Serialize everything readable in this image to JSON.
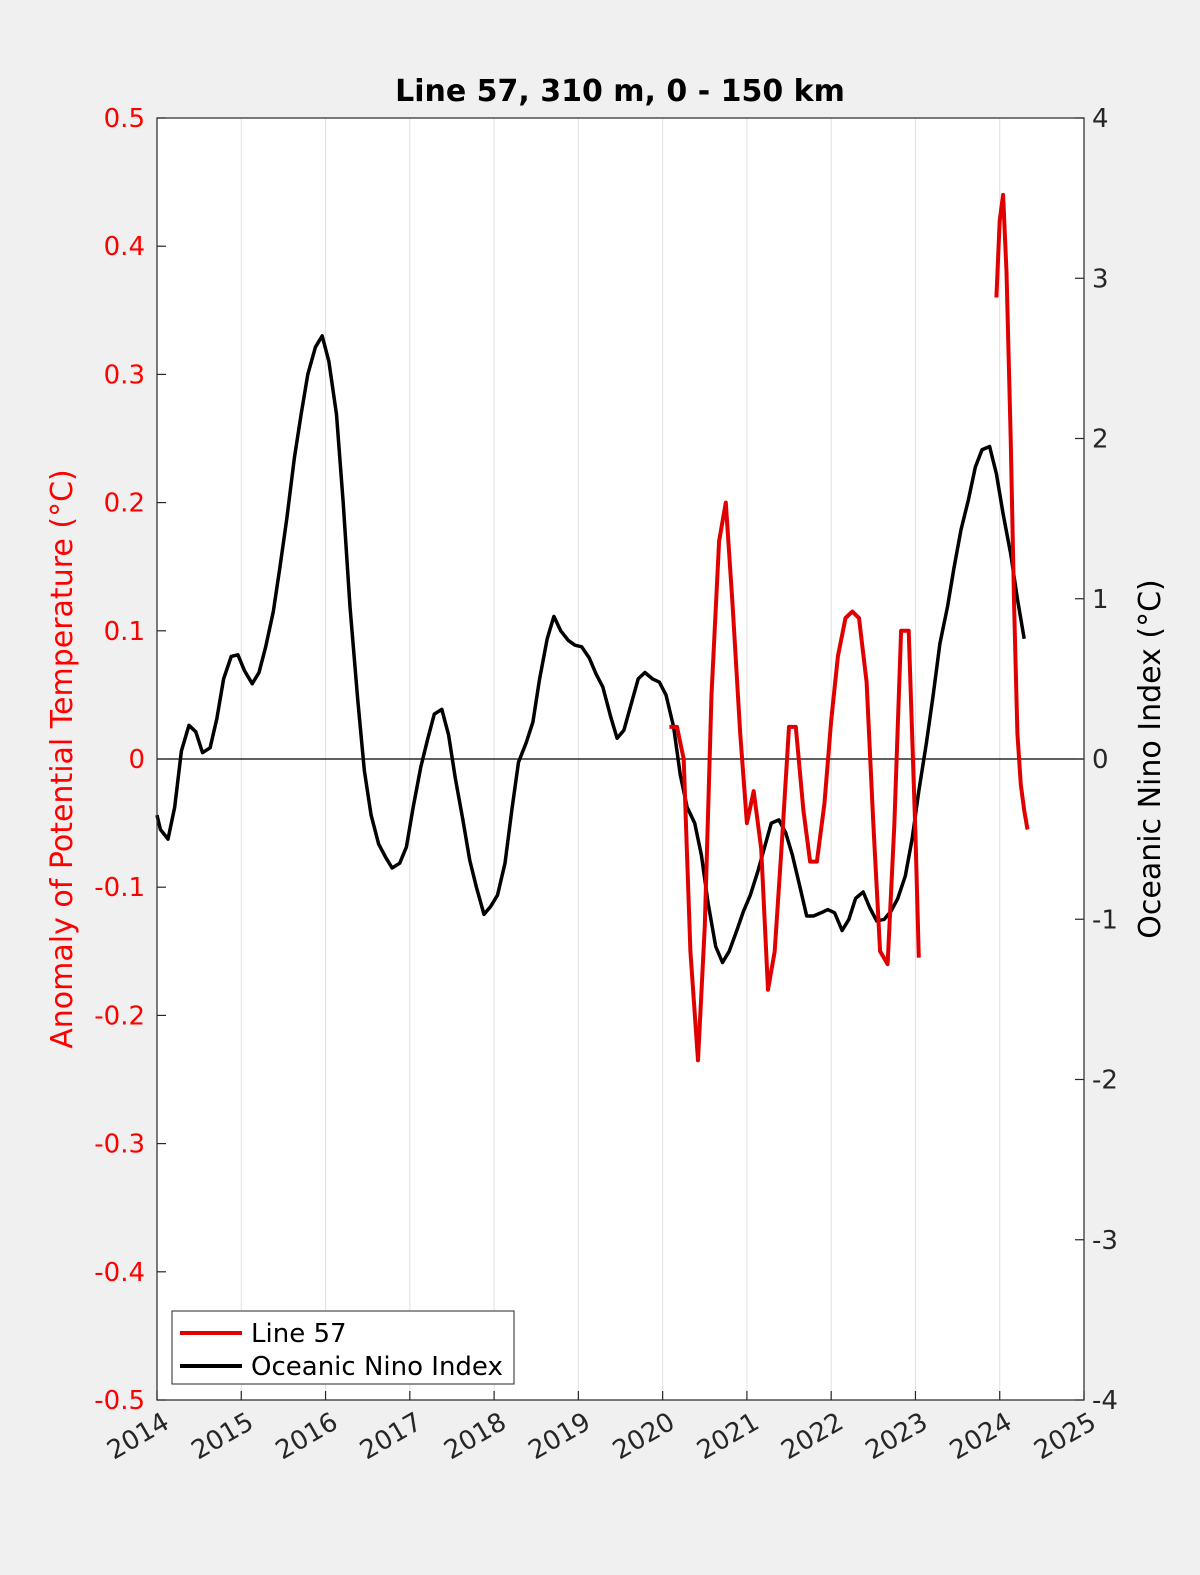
{
  "chart_data": {
    "type": "line",
    "title": "Line 57, 310 m, 0 - 150 km",
    "ylabel_left": "Anomaly of Potential Temperature (°C)",
    "ylabel_right": "Oceanic Nino Index (°C)",
    "xlabel": "",
    "xlim": [
      2014,
      2025
    ],
    "ylim_left": [
      -0.5,
      0.5
    ],
    "ylim_right": [
      -4,
      4
    ],
    "x_ticks": [
      "2014",
      "2015",
      "2016",
      "2017",
      "2018",
      "2019",
      "2020",
      "2021",
      "2022",
      "2023",
      "2024",
      "2025"
    ],
    "y_left_ticks": [
      "-0.5",
      "-0.4",
      "-0.3",
      "-0.2",
      "-0.1",
      "0",
      "0.1",
      "0.2",
      "0.3",
      "0.4",
      "0.5"
    ],
    "y_right_ticks": [
      "-4",
      "-3",
      "-2",
      "-1",
      "0",
      "1",
      "2",
      "3",
      "4"
    ],
    "grid": "vertical",
    "zero_line": true,
    "legend_position": "bottom-left",
    "colors": {
      "left_axis": "#ff0000",
      "line57": "#e00000",
      "oni": "#000000"
    },
    "series": [
      {
        "name": "Line 57",
        "axis": "left",
        "segments": [
          {
            "x": [
              2020.08,
              2020.17,
              2020.25,
              2020.33,
              2020.42,
              2020.5,
              2020.58,
              2020.67,
              2020.75,
              2020.83,
              2020.92,
              2021.0,
              2021.08,
              2021.17,
              2021.25,
              2021.33,
              2021.42,
              2021.5,
              2021.58,
              2021.67,
              2021.75,
              2021.83,
              2021.92,
              2022.0,
              2022.08,
              2022.17,
              2022.25,
              2022.33,
              2022.42,
              2022.5,
              2022.58,
              2022.67,
              2022.75,
              2022.83,
              2022.92,
              2023.0,
              2023.04
            ],
            "y": [
              0.025,
              0.025,
              0.0,
              -0.15,
              -0.235,
              -0.13,
              0.05,
              0.17,
              0.2,
              0.12,
              0.02,
              -0.05,
              -0.025,
              -0.07,
              -0.18,
              -0.15,
              -0.06,
              0.025,
              0.025,
              -0.04,
              -0.08,
              -0.08,
              -0.035,
              0.03,
              0.08,
              0.11,
              0.115,
              0.11,
              0.06,
              -0.05,
              -0.15,
              -0.16,
              -0.05,
              0.1,
              0.1,
              -0.06,
              -0.155
            ]
          },
          {
            "x": [
              2023.96,
              2024.0,
              2024.04,
              2024.08,
              2024.13,
              2024.17,
              2024.21,
              2024.25,
              2024.29,
              2024.33
            ],
            "y": [
              0.36,
              0.42,
              0.44,
              0.38,
              0.25,
              0.12,
              0.02,
              -0.02,
              -0.04,
              -0.055
            ]
          }
        ]
      },
      {
        "name": "Oceanic Nino Index",
        "axis": "right",
        "x": [
          2014.0,
          2014.04,
          2014.13,
          2014.21,
          2014.29,
          2014.38,
          2014.46,
          2014.54,
          2014.63,
          2014.71,
          2014.79,
          2014.88,
          2014.96,
          2015.04,
          2015.13,
          2015.21,
          2015.29,
          2015.38,
          2015.46,
          2015.54,
          2015.63,
          2015.71,
          2015.79,
          2015.88,
          2015.96,
          2016.04,
          2016.13,
          2016.21,
          2016.29,
          2016.38,
          2016.46,
          2016.54,
          2016.63,
          2016.71,
          2016.79,
          2016.88,
          2016.96,
          2017.04,
          2017.13,
          2017.21,
          2017.29,
          2017.38,
          2017.46,
          2017.54,
          2017.63,
          2017.71,
          2017.79,
          2017.88,
          2017.96,
          2018.04,
          2018.13,
          2018.21,
          2018.29,
          2018.38,
          2018.46,
          2018.54,
          2018.63,
          2018.71,
          2018.79,
          2018.88,
          2018.96,
          2019.04,
          2019.13,
          2019.21,
          2019.29,
          2019.38,
          2019.46,
          2019.54,
          2019.63,
          2019.71,
          2019.79,
          2019.88,
          2019.96,
          2020.04,
          2020.13,
          2020.21,
          2020.29,
          2020.38,
          2020.46,
          2020.54,
          2020.63,
          2020.71,
          2020.79,
          2020.88,
          2020.96,
          2021.04,
          2021.13,
          2021.21,
          2021.29,
          2021.38,
          2021.46,
          2021.54,
          2021.63,
          2021.71,
          2021.79,
          2021.88,
          2021.96,
          2022.04,
          2022.13,
          2022.21,
          2022.29,
          2022.38,
          2022.46,
          2022.54,
          2022.63,
          2022.71,
          2022.79,
          2022.88,
          2022.96,
          2023.04,
          2023.13,
          2023.21,
          2023.29,
          2023.38,
          2023.46,
          2023.54,
          2023.63,
          2023.71,
          2023.79,
          2023.88,
          2023.96,
          2024.04,
          2024.13,
          2024.21,
          2024.29
        ],
        "y": [
          -0.35,
          -0.44,
          -0.5,
          -0.3,
          0.05,
          0.21,
          0.17,
          0.04,
          0.07,
          0.25,
          0.5,
          0.64,
          0.65,
          0.55,
          0.47,
          0.54,
          0.7,
          0.92,
          1.2,
          1.5,
          1.88,
          2.15,
          2.4,
          2.57,
          2.64,
          2.48,
          2.15,
          1.6,
          0.95,
          0.38,
          -0.07,
          -0.35,
          -0.53,
          -0.61,
          -0.68,
          -0.65,
          -0.55,
          -0.3,
          -0.05,
          0.12,
          0.28,
          0.31,
          0.15,
          -0.12,
          -0.38,
          -0.63,
          -0.8,
          -0.97,
          -0.92,
          -0.85,
          -0.65,
          -0.32,
          -0.02,
          0.1,
          0.23,
          0.5,
          0.75,
          0.89,
          0.8,
          0.74,
          0.71,
          0.7,
          0.63,
          0.53,
          0.45,
          0.27,
          0.13,
          0.18,
          0.35,
          0.5,
          0.54,
          0.5,
          0.48,
          0.4,
          0.2,
          -0.1,
          -0.3,
          -0.4,
          -0.6,
          -0.9,
          -1.17,
          -1.27,
          -1.2,
          -1.07,
          -0.95,
          -0.85,
          -0.7,
          -0.55,
          -0.4,
          -0.38,
          -0.46,
          -0.6,
          -0.8,
          -0.98,
          -0.98,
          -0.96,
          -0.94,
          -0.96,
          -1.07,
          -1.0,
          -0.87,
          -0.83,
          -0.93,
          -1.01,
          -1.0,
          -0.95,
          -0.87,
          -0.73,
          -0.5,
          -0.2,
          0.1,
          0.4,
          0.72,
          0.95,
          1.2,
          1.43,
          1.62,
          1.82,
          1.93,
          1.95,
          1.78,
          1.53,
          1.28,
          1.0,
          0.75
        ]
      }
    ]
  }
}
